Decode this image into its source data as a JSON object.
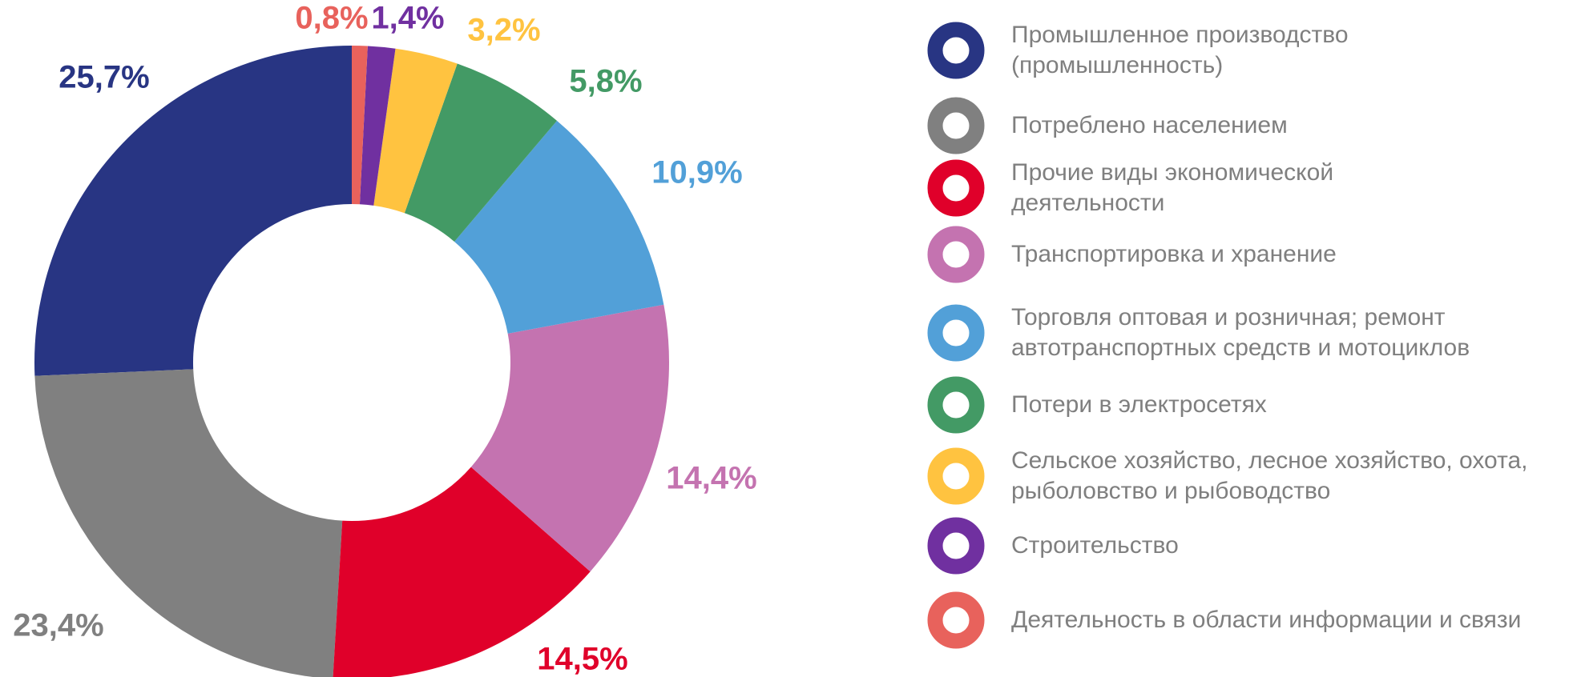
{
  "chart_data": {
    "type": "donut",
    "categories": [
      "Промышленное производство\n(промышленность)",
      "Потреблено населением",
      "Прочие виды экономической\nдеятельности",
      "Транспортировка и хранение",
      "Торговля оптовая и розничная; ремонт\nавтотранспортных средств и мотоциклов",
      "Потери в электросетях",
      "Сельское хозяйство, лесное хозяйство, охота,\nрыболовство и рыбоводство",
      "Строительство",
      "Деятельность в области информации и связи"
    ],
    "values": [
      25.7,
      23.4,
      14.5,
      14.4,
      10.9,
      5.8,
      3.2,
      1.4,
      0.8
    ],
    "value_labels": [
      "25,7%",
      "23,4%",
      "14,5%",
      "14,4%",
      "10,9%",
      "5,8%",
      "3,2%",
      "1,4%",
      "0,8%"
    ],
    "colors": [
      "#283583",
      "#808080",
      "#e0002a",
      "#c473b0",
      "#52a0d8",
      "#439a65",
      "#ffc340",
      "#7030a0",
      "#e8625c"
    ],
    "legend": "right"
  }
}
